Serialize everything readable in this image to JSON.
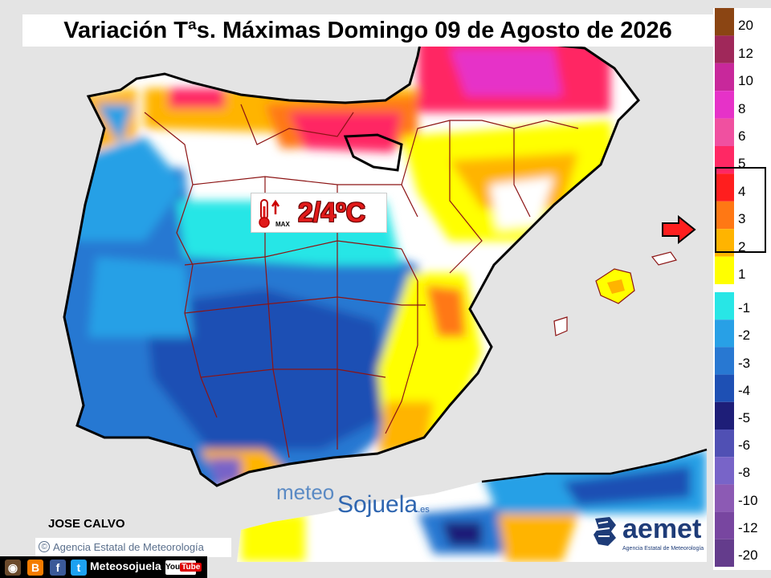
{
  "title": "Variación Tªs. Máximas Domingo 09 de Agosto de 2026",
  "badge": {
    "range": "2/4ºC",
    "max": "MAX",
    "icon": "thermometer-up-icon"
  },
  "author": "JOSE CALVO",
  "copyright": {
    "symbol": "©",
    "text": "Agencia Estatal de Meteorología"
  },
  "watermark": {
    "part1": "meteo",
    "part2": "Sojuela",
    "suffix": ".es"
  },
  "aemet": {
    "word": "aemet",
    "sub": "Agencia Estatal de Meteorología"
  },
  "social": {
    "icons": [
      "instagram-icon",
      "blogger-icon",
      "facebook-icon",
      "twitter-icon"
    ],
    "label": "Meteosojuela",
    "youtube": {
      "you": "You",
      "tube": "Tube"
    }
  },
  "legend": {
    "labels": [
      "20",
      "12",
      "10",
      "8",
      "6",
      "5",
      "4",
      "3",
      "2",
      "1",
      "-1",
      "-2",
      "-3",
      "-4",
      "-5",
      "-6",
      "-8",
      "-10",
      "-12",
      "-20"
    ],
    "colors": {
      "20": "#8b4513",
      "12": "#a0285a",
      "10": "#c8289b",
      "8": "#e632c8",
      "6": "#f050a0",
      "5": "#ff2864",
      "4": "#ff1e1e",
      "3": "#ff7814",
      "2": "#ffb400",
      "1": "#ffff00",
      "-1": "#28e6e6",
      "-2": "#28a0e6",
      "-3": "#2878d2",
      "-4": "#1e50b4",
      "-5": "#1e1e78",
      "-6": "#5050b4",
      "-8": "#7864c8",
      "-10": "#8c5ab4",
      "-12": "#7846a0",
      "-20": "#643c8c"
    },
    "highlighted": [
      "4",
      "3",
      "2"
    ]
  },
  "colors": {
    "sea": "#e4e4e4",
    "neutral": "#ffffff",
    "border": "#000000",
    "regions": "#8c1414"
  }
}
